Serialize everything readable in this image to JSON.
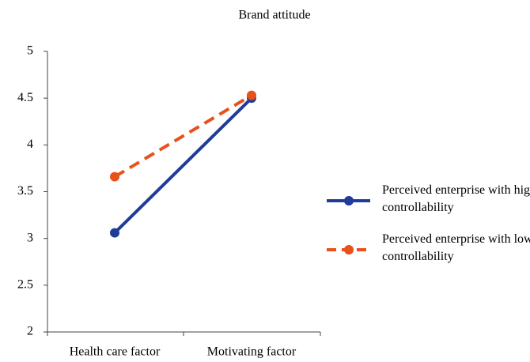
{
  "chart_data": {
    "type": "line",
    "title": "Brand attitude",
    "categories": [
      "Health care factor",
      "Motivating factor"
    ],
    "series": [
      {
        "name": "Perceived enterprise with high controllability",
        "color": "#1f3c99",
        "dash": false,
        "values": [
          3.06,
          4.5
        ]
      },
      {
        "name": "Perceived enterprise with low controllability",
        "color": "#e8501c",
        "dash": true,
        "values": [
          3.66,
          4.53
        ]
      }
    ],
    "ylim": [
      2,
      5
    ],
    "yticks": [
      2,
      2.5,
      3,
      3.5,
      4,
      4.5,
      5
    ],
    "legend": "right"
  }
}
